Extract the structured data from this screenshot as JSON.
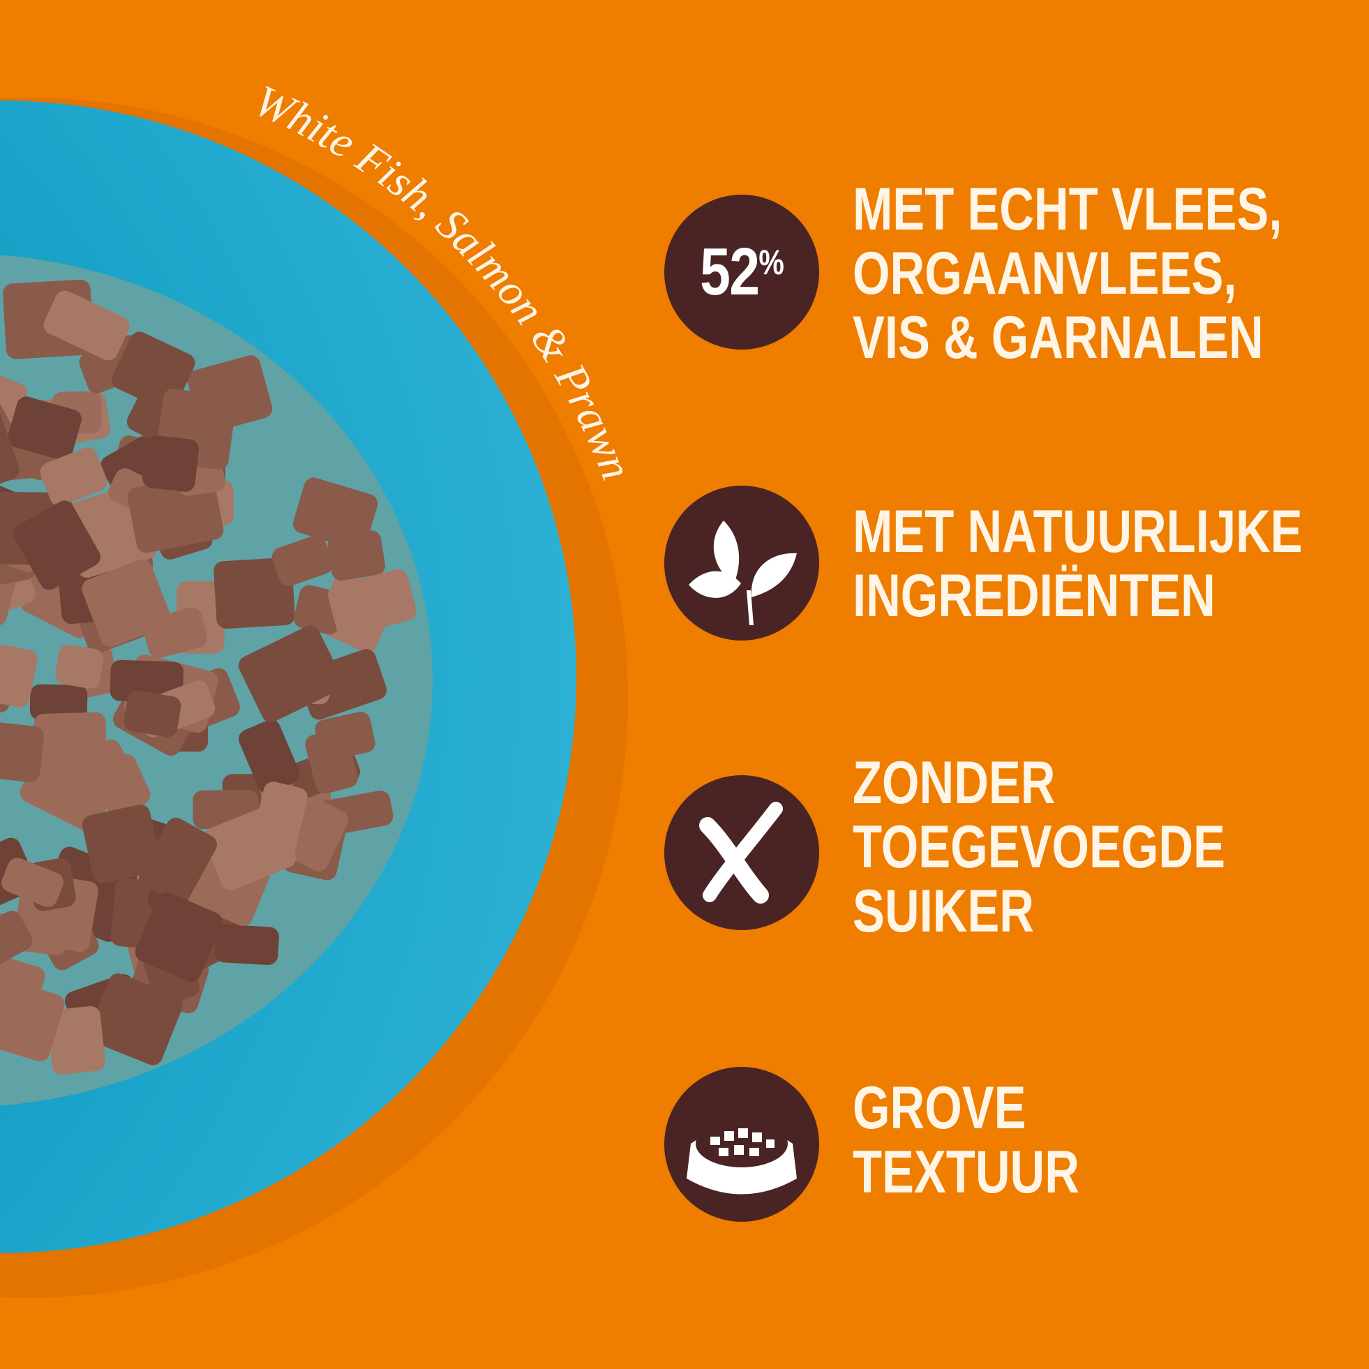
{
  "variant_label": "White Fish, Salmon & Prawn",
  "colors": {
    "background": "#ee7d00",
    "bowl": "#1aa3c8",
    "badge": "#4a2424",
    "text": "#fff5e6"
  },
  "features": [
    {
      "icon": "percent-badge",
      "badge_value": "52",
      "badge_unit": "%",
      "lines": [
        "MET ECHT VLEES,",
        "ORGAANVLEES,",
        "VIS & GARNALEN"
      ]
    },
    {
      "icon": "leaf-icon",
      "lines": [
        "MET NATUURLIJKE",
        "INGREDIËNTEN"
      ]
    },
    {
      "icon": "cross-icon",
      "lines": [
        "ZONDER",
        "TOEGEVOEGDE",
        "SUIKER"
      ]
    },
    {
      "icon": "food-bowl-icon",
      "lines": [
        "GROVE",
        "TEXTUUR"
      ]
    }
  ]
}
